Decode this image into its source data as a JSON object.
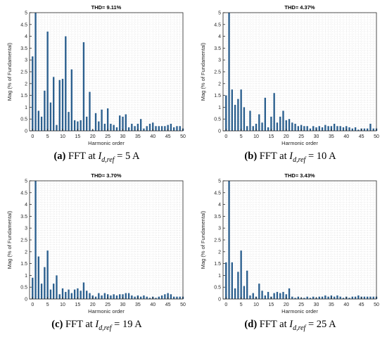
{
  "figure": {
    "panels": [
      {
        "tag": "(a)",
        "caption_prefix": "FFT at",
        "caption_symbol": "I",
        "caption_sub": "d,ref",
        "caption_value": "= 5 A"
      },
      {
        "tag": "(b)",
        "caption_prefix": "FFT at",
        "caption_symbol": "I",
        "caption_sub": "d,ref",
        "caption_value": "= 10 A"
      },
      {
        "tag": "(c)",
        "caption_prefix": "FFT at",
        "caption_symbol": "I",
        "caption_sub": "d,ref",
        "caption_value": "= 19 A"
      },
      {
        "tag": "(d)",
        "caption_prefix": "FFT at",
        "caption_symbol": "I",
        "caption_sub": "d,ref",
        "caption_value": "= 25 A"
      }
    ]
  },
  "chart_data": [
    {
      "type": "bar",
      "title": "THD= 9.11%",
      "xlabel": "Harmonic order",
      "ylabel": "Mag (% of Fundamental)",
      "xlim": [
        -1,
        50
      ],
      "ylim": [
        0,
        5
      ],
      "xticks": [
        0,
        5,
        10,
        15,
        20,
        25,
        30,
        35,
        40,
        45,
        50
      ],
      "yticks": [
        0,
        0.5,
        1,
        1.5,
        2,
        2.5,
        3,
        3.5,
        4,
        4.5,
        5
      ],
      "grid": true,
      "bar_color": "#2b5f8e",
      "x": [
        0,
        1,
        2,
        3,
        4,
        5,
        6,
        7,
        8,
        9,
        10,
        11,
        12,
        13,
        14,
        15,
        16,
        17,
        18,
        19,
        20,
        21,
        22,
        23,
        24,
        25,
        26,
        27,
        28,
        29,
        30,
        31,
        32,
        33,
        34,
        35,
        36,
        37,
        38,
        39,
        40,
        41,
        42,
        43,
        44,
        45,
        46,
        47,
        48,
        49,
        50
      ],
      "values": [
        3.15,
        5.0,
        0.85,
        0.6,
        1.7,
        4.2,
        1.2,
        2.28,
        0.25,
        2.15,
        2.2,
        4.0,
        0.8,
        2.6,
        0.45,
        0.4,
        0.45,
        3.75,
        0.6,
        1.65,
        0.05,
        0.75,
        0.4,
        0.9,
        0.3,
        0.95,
        0.3,
        0.25,
        0.15,
        0.65,
        0.6,
        0.7,
        0.15,
        0.3,
        0.2,
        0.3,
        0.5,
        0.1,
        0.2,
        0.3,
        0.35,
        0.2,
        0.2,
        0.2,
        0.2,
        0.25,
        0.3,
        0.15,
        0.2,
        0.2,
        0.1
      ]
    },
    {
      "type": "bar",
      "title": "THD= 4.37%",
      "xlabel": "Harmonic order",
      "ylabel": "Mag (% of Fundamental)",
      "xlim": [
        -1,
        50
      ],
      "ylim": [
        0,
        5
      ],
      "xticks": [
        0,
        5,
        10,
        15,
        20,
        25,
        30,
        35,
        40,
        45,
        50
      ],
      "yticks": [
        0,
        0.5,
        1,
        1.5,
        2,
        2.5,
        3,
        3.5,
        4,
        4.5,
        5
      ],
      "grid": true,
      "bar_color": "#2b5f8e",
      "x": [
        0,
        1,
        2,
        3,
        4,
        5,
        6,
        7,
        8,
        9,
        10,
        11,
        12,
        13,
        14,
        15,
        16,
        17,
        18,
        19,
        20,
        21,
        22,
        23,
        24,
        25,
        26,
        27,
        28,
        29,
        30,
        31,
        32,
        33,
        34,
        35,
        36,
        37,
        38,
        39,
        40,
        41,
        42,
        43,
        44,
        45,
        46,
        47,
        48,
        49,
        50
      ],
      "values": [
        1.5,
        5.0,
        1.75,
        1.1,
        1.35,
        1.75,
        1.0,
        0.2,
        0.85,
        0.2,
        0.3,
        0.7,
        0.35,
        1.4,
        0.15,
        0.6,
        1.6,
        0.35,
        0.6,
        0.85,
        0.45,
        0.5,
        0.35,
        0.3,
        0.2,
        0.25,
        0.2,
        0.2,
        0.1,
        0.2,
        0.15,
        0.2,
        0.15,
        0.25,
        0.2,
        0.2,
        0.3,
        0.2,
        0.2,
        0.15,
        0.2,
        0.15,
        0.1,
        0.15,
        0.05,
        0.1,
        0.1,
        0.1,
        0.3,
        0.1,
        0.1
      ]
    },
    {
      "type": "bar",
      "title": "THD= 3.70%",
      "xlabel": "Harmonic order",
      "ylabel": "Mag (% of Fundamental)",
      "xlim": [
        -1,
        50
      ],
      "ylim": [
        0,
        5
      ],
      "xticks": [
        0,
        5,
        10,
        15,
        20,
        25,
        30,
        35,
        40,
        45,
        50
      ],
      "yticks": [
        0,
        0.5,
        1,
        1.5,
        2,
        2.5,
        3,
        3.5,
        4,
        4.5,
        5
      ],
      "grid": true,
      "bar_color": "#2b5f8e",
      "x": [
        0,
        1,
        2,
        3,
        4,
        5,
        6,
        7,
        8,
        9,
        10,
        11,
        12,
        13,
        14,
        15,
        16,
        17,
        18,
        19,
        20,
        21,
        22,
        23,
        24,
        25,
        26,
        27,
        28,
        29,
        30,
        31,
        32,
        33,
        34,
        35,
        36,
        37,
        38,
        39,
        40,
        41,
        42,
        43,
        44,
        45,
        46,
        47,
        48,
        49,
        50
      ],
      "values": [
        0.9,
        5.0,
        1.8,
        0.65,
        1.35,
        2.05,
        0.4,
        0.65,
        1.0,
        0.2,
        0.45,
        0.3,
        0.4,
        0.25,
        0.4,
        0.45,
        0.35,
        0.7,
        0.35,
        0.25,
        0.15,
        0.1,
        0.25,
        0.15,
        0.25,
        0.2,
        0.15,
        0.2,
        0.15,
        0.2,
        0.2,
        0.25,
        0.25,
        0.15,
        0.1,
        0.15,
        0.1,
        0.15,
        0.1,
        0.05,
        0.1,
        0.05,
        0.1,
        0.15,
        0.2,
        0.25,
        0.2,
        0.1,
        0.1,
        0.1,
        0.1
      ]
    },
    {
      "type": "bar",
      "title": "THD= 3.43%",
      "xlabel": "Harmonic order",
      "ylabel": "Mag (% of Fundamental)",
      "xlim": [
        -1,
        50
      ],
      "ylim": [
        0,
        5
      ],
      "xticks": [
        0,
        5,
        10,
        15,
        20,
        25,
        30,
        35,
        40,
        45,
        50
      ],
      "yticks": [
        0,
        0.5,
        1,
        1.5,
        2,
        2.5,
        3,
        3.5,
        4,
        4.5,
        5
      ],
      "grid": true,
      "bar_color": "#2b5f8e",
      "x": [
        0,
        1,
        2,
        3,
        4,
        5,
        6,
        7,
        8,
        9,
        10,
        11,
        12,
        13,
        14,
        15,
        16,
        17,
        18,
        19,
        20,
        21,
        22,
        23,
        24,
        25,
        26,
        27,
        28,
        29,
        30,
        31,
        32,
        33,
        34,
        35,
        36,
        37,
        38,
        39,
        40,
        41,
        42,
        43,
        44,
        45,
        46,
        47,
        48,
        49,
        50
      ],
      "values": [
        1.55,
        5.0,
        1.55,
        0.45,
        1.15,
        2.05,
        0.55,
        1.2,
        0.15,
        0.25,
        0.1,
        0.65,
        0.35,
        0.15,
        0.3,
        0.1,
        0.25,
        0.3,
        0.25,
        0.3,
        0.2,
        0.45,
        0.1,
        0.05,
        0.1,
        0.05,
        0.05,
        0.1,
        0.05,
        0.1,
        0.05,
        0.1,
        0.1,
        0.15,
        0.1,
        0.15,
        0.1,
        0.15,
        0.1,
        0.05,
        0.1,
        0.05,
        0.1,
        0.1,
        0.15,
        0.1,
        0.1,
        0.1,
        0.1,
        0.1,
        0.1
      ]
    }
  ]
}
